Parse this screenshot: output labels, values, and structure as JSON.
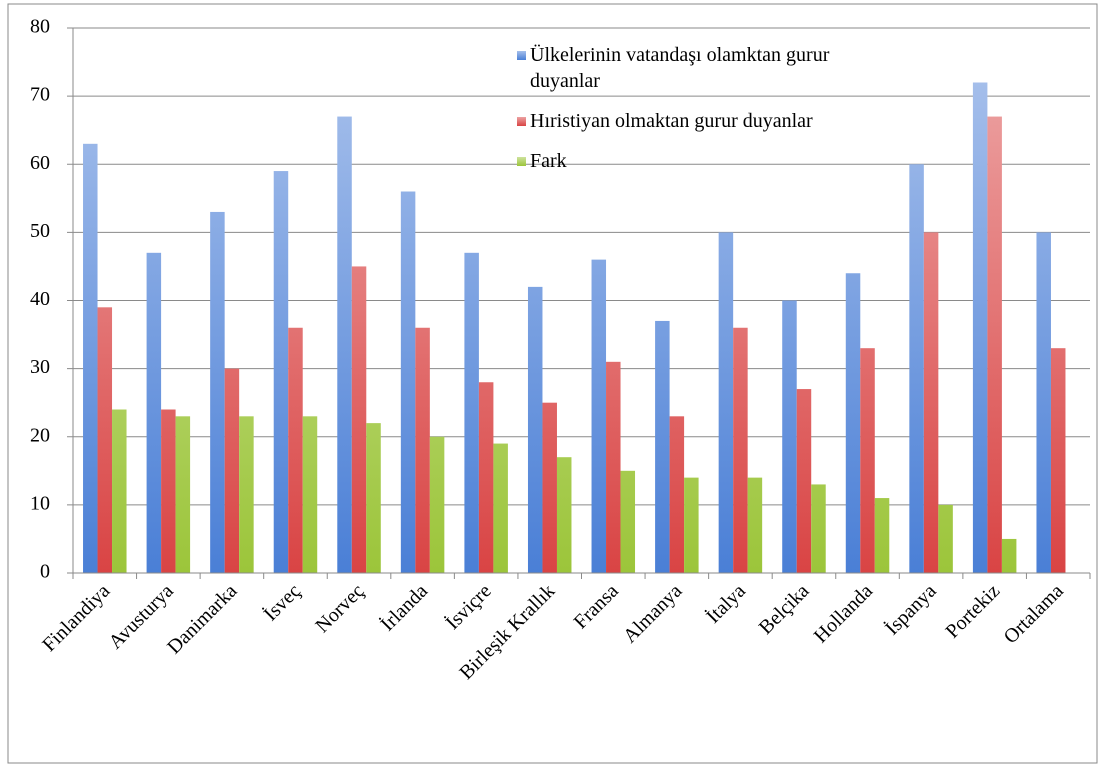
{
  "chart_data": {
    "type": "bar",
    "categories": [
      "Finlandiya",
      "Avusturya",
      "Danimarka",
      "İsveç",
      "Norveç",
      "İrlanda",
      "İsviçre",
      "Birleşik Krallık",
      "Fransa",
      "Almanya",
      "İtalya",
      "Belçika",
      "Hollanda",
      "İspanya",
      "Portekiz",
      "Ortalama"
    ],
    "series": [
      {
        "name": "Ülkelerinin vatandaşı olamktan gurur duyanlar",
        "color": "#4a7fd6",
        "values": [
          63,
          47,
          53,
          59,
          67,
          56,
          47,
          42,
          46,
          37,
          50,
          40,
          44,
          60,
          72,
          50
        ]
      },
      {
        "name": "Hıristiyan olmaktan gurur duyanlar",
        "color": "#d94444",
        "values": [
          39,
          24,
          30,
          36,
          45,
          36,
          28,
          25,
          31,
          23,
          36,
          27,
          33,
          50,
          67,
          33
        ]
      },
      {
        "name": "Fark",
        "color": "#9cc53a",
        "values": [
          24,
          23,
          23,
          23,
          22,
          20,
          19,
          17,
          15,
          14,
          14,
          13,
          11,
          10,
          5,
          null
        ]
      }
    ],
    "ylim": [
      0,
      80
    ],
    "yticks": [
      0,
      10,
      20,
      30,
      40,
      50,
      60,
      70,
      80
    ],
    "grid": true
  }
}
